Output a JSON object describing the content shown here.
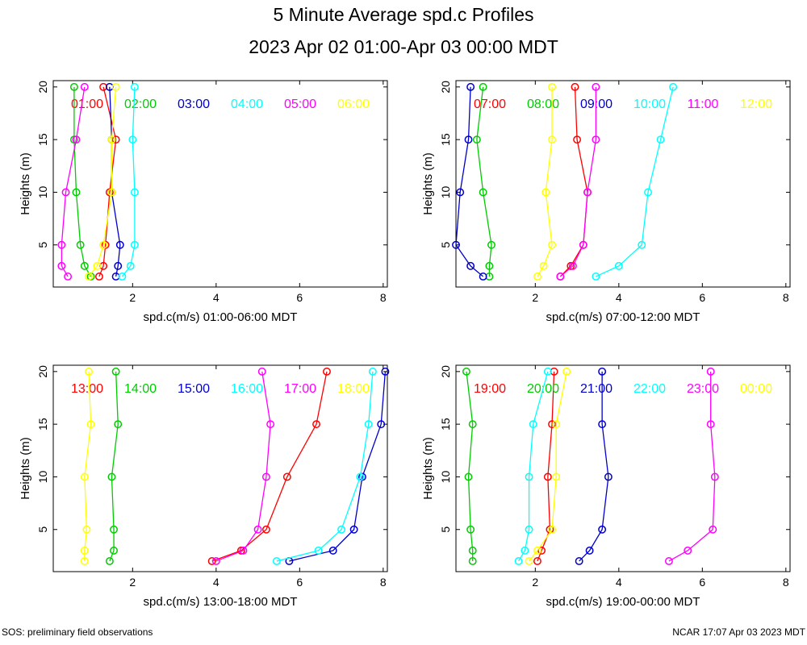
{
  "title": "5 Minute Average spd.c Profiles",
  "subtitle": "2023 Apr 02 01:00-Apr 03 00:00 MDT",
  "footer_left": "SOS: preliminary field observations",
  "footer_right": "NCAR 17:07 Apr 03 2023 MDT",
  "colors": [
    "#ff0000",
    "#00cc00",
    "#0000cc",
    "#00ffff",
    "#ff00ff",
    "#ffff00"
  ],
  "chart_data": [
    {
      "type": "line",
      "xlabel": "spd.c(m/s) 01:00-06:00 MDT",
      "ylabel": "Heights (m)",
      "xlim": [
        0.1,
        8.1
      ],
      "ylim": [
        1,
        20.6
      ],
      "xticks": [
        2,
        4,
        6,
        8
      ],
      "yticks": [
        5,
        10,
        15,
        20
      ],
      "series": [
        {
          "name": "01:00",
          "heights": [
            2,
            3,
            5,
            10,
            15,
            20
          ],
          "values": [
            1.2,
            1.3,
            1.35,
            1.45,
            1.6,
            1.3
          ]
        },
        {
          "name": "02:00",
          "heights": [
            2,
            3,
            5,
            10,
            15,
            20
          ],
          "values": [
            1.0,
            0.85,
            0.75,
            0.65,
            0.6,
            0.6
          ]
        },
        {
          "name": "03:00",
          "heights": [
            2,
            3,
            5,
            10,
            15,
            20
          ],
          "values": [
            1.6,
            1.65,
            1.7,
            1.5,
            1.5,
            1.45
          ]
        },
        {
          "name": "04:00",
          "heights": [
            2,
            3,
            5,
            10,
            15,
            20
          ],
          "values": [
            1.75,
            1.95,
            2.05,
            2.05,
            2.0,
            2.05
          ]
        },
        {
          "name": "05:00",
          "heights": [
            2,
            3,
            5,
            10,
            15,
            20
          ],
          "values": [
            0.45,
            0.3,
            0.3,
            0.4,
            0.65,
            0.85
          ]
        },
        {
          "name": "06:00",
          "heights": [
            2,
            3,
            5,
            10,
            15,
            20
          ],
          "values": [
            0.95,
            1.15,
            1.3,
            1.5,
            1.5,
            1.6
          ]
        }
      ]
    },
    {
      "type": "line",
      "xlabel": "spd.c(m/s) 07:00-12:00 MDT",
      "ylabel": "Heights (m)",
      "xlim": [
        0.1,
        8.1
      ],
      "ylim": [
        1,
        20.6
      ],
      "xticks": [
        2,
        4,
        6,
        8
      ],
      "yticks": [
        5,
        10,
        15,
        20
      ],
      "series": [
        {
          "name": "07:00",
          "heights": [
            2,
            3,
            5,
            10,
            15,
            20
          ],
          "values": [
            2.6,
            2.85,
            3.15,
            3.25,
            3.0,
            2.95
          ]
        },
        {
          "name": "08:00",
          "heights": [
            2,
            3,
            5,
            10,
            15,
            20
          ],
          "values": [
            0.9,
            0.9,
            0.95,
            0.75,
            0.6,
            0.75
          ]
        },
        {
          "name": "09:00",
          "heights": [
            2,
            3,
            5,
            10,
            15,
            20
          ],
          "values": [
            0.75,
            0.45,
            0.1,
            0.2,
            0.4,
            0.45
          ]
        },
        {
          "name": "10:00",
          "heights": [
            2,
            3,
            5,
            10,
            15,
            20
          ],
          "values": [
            3.45,
            4.0,
            4.55,
            4.7,
            5.0,
            5.3
          ]
        },
        {
          "name": "11:00",
          "heights": [
            2,
            3,
            5,
            10,
            15,
            20
          ],
          "values": [
            2.6,
            2.9,
            3.15,
            3.25,
            3.45,
            3.45
          ]
        },
        {
          "name": "12:00",
          "heights": [
            2,
            3,
            5,
            10,
            15,
            20
          ],
          "values": [
            2.05,
            2.2,
            2.4,
            2.25,
            2.4,
            2.4
          ]
        }
      ]
    },
    {
      "type": "line",
      "xlabel": "spd.c(m/s) 13:00-18:00 MDT",
      "ylabel": "Heights (m)",
      "xlim": [
        0.1,
        8.1
      ],
      "ylim": [
        1,
        20.6
      ],
      "xticks": [
        2,
        4,
        6,
        8
      ],
      "yticks": [
        5,
        10,
        15,
        20
      ],
      "series": [
        {
          "name": "13:00",
          "heights": [
            2,
            3,
            5,
            10,
            15,
            20
          ],
          "values": [
            3.9,
            4.6,
            5.2,
            5.7,
            6.4,
            6.65
          ]
        },
        {
          "name": "14:00",
          "heights": [
            2,
            3,
            5,
            10,
            15,
            20
          ],
          "values": [
            1.45,
            1.55,
            1.55,
            1.5,
            1.65,
            1.6
          ]
        },
        {
          "name": "15:00",
          "heights": [
            2,
            3,
            5,
            10,
            15,
            20
          ],
          "values": [
            5.75,
            6.8,
            7.3,
            7.5,
            7.95,
            8.05
          ]
        },
        {
          "name": "16:00",
          "heights": [
            2,
            3,
            5,
            10,
            15,
            20
          ],
          "values": [
            5.45,
            6.45,
            7.0,
            7.45,
            7.65,
            7.75
          ]
        },
        {
          "name": "17:00",
          "heights": [
            2,
            3,
            5,
            10,
            15,
            20
          ],
          "values": [
            4.0,
            4.65,
            5.0,
            5.2,
            5.3,
            5.1
          ]
        },
        {
          "name": "18:00",
          "heights": [
            2,
            3,
            5,
            10,
            15,
            20
          ],
          "values": [
            0.85,
            0.85,
            0.9,
            0.85,
            1.0,
            0.95
          ]
        }
      ]
    },
    {
      "type": "line",
      "xlabel": "spd.c(m/s) 19:00-00:00 MDT",
      "ylabel": "Heights (m)",
      "xlim": [
        0.1,
        8.1
      ],
      "ylim": [
        1,
        20.6
      ],
      "xticks": [
        2,
        4,
        6,
        8
      ],
      "yticks": [
        5,
        10,
        15,
        20
      ],
      "series": [
        {
          "name": "19:00",
          "heights": [
            2,
            3,
            5,
            10,
            15,
            20
          ],
          "values": [
            2.05,
            2.15,
            2.35,
            2.3,
            2.4,
            2.45
          ]
        },
        {
          "name": "20:00",
          "heights": [
            2,
            3,
            5,
            10,
            15,
            20
          ],
          "values": [
            0.5,
            0.5,
            0.45,
            0.4,
            0.5,
            0.35
          ]
        },
        {
          "name": "21:00",
          "heights": [
            2,
            3,
            5,
            10,
            15,
            20
          ],
          "values": [
            3.05,
            3.3,
            3.6,
            3.75,
            3.6,
            3.6
          ]
        },
        {
          "name": "22:00",
          "heights": [
            2,
            3,
            5,
            10,
            15,
            20
          ],
          "values": [
            1.6,
            1.75,
            1.85,
            1.85,
            1.95,
            2.3
          ]
        },
        {
          "name": "23:00",
          "heights": [
            2,
            3,
            5,
            10,
            15,
            20
          ],
          "values": [
            5.2,
            5.65,
            6.25,
            6.3,
            6.2,
            6.2
          ]
        },
        {
          "name": "00:00",
          "heights": [
            2,
            3,
            5,
            10,
            15,
            20
          ],
          "values": [
            1.85,
            2.05,
            2.4,
            2.5,
            2.5,
            2.75
          ]
        }
      ]
    }
  ]
}
